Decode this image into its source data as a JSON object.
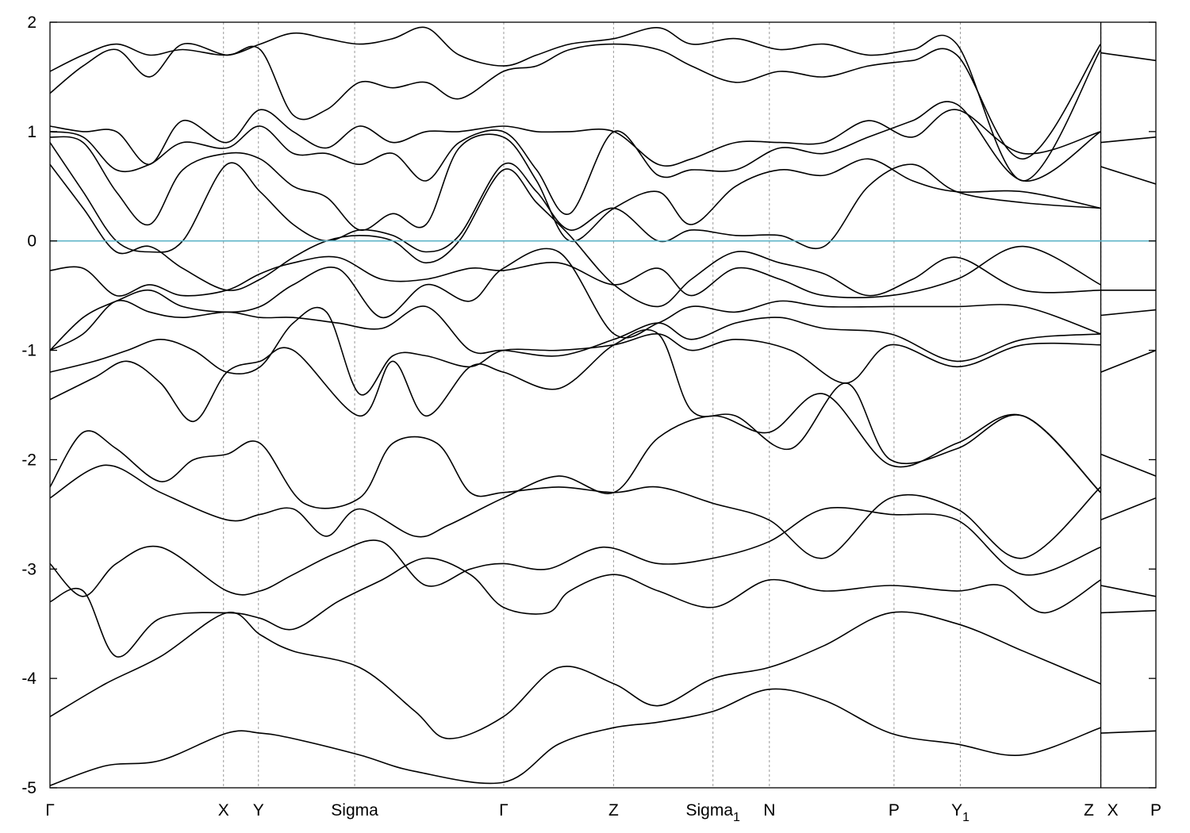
{
  "chart_data": {
    "type": "line",
    "title": "",
    "xlabel": "",
    "ylabel": "",
    "ylim": [
      -5,
      2
    ],
    "xlim": [
      0,
      1
    ],
    "yticks": [
      -5,
      -4,
      -3,
      -2,
      -1,
      0,
      1,
      2
    ],
    "ytick_labels": [
      "-5",
      "-4",
      "-3",
      "-2",
      "-1",
      "0",
      "1",
      "2"
    ],
    "kpoints": [
      {
        "label": "Γ",
        "sub": "",
        "x": 0.0
      },
      {
        "label": "X",
        "sub": "",
        "x": 0.1569
      },
      {
        "label": "Y",
        "sub": "",
        "x": 0.1885
      },
      {
        "label": "Sigma",
        "sub": "",
        "x": 0.2755
      },
      {
        "label": "Γ",
        "sub": "",
        "x": 0.4103
      },
      {
        "label": "Z",
        "sub": "",
        "x": 0.5096
      },
      {
        "label": "Sigma",
        "sub": "1",
        "x": 0.5995
      },
      {
        "label": "N",
        "sub": "",
        "x": 0.6505
      },
      {
        "label": "P",
        "sub": "",
        "x": 0.7632
      },
      {
        "label": "Y",
        "sub": "1",
        "x": 0.8232
      },
      {
        "label": "Z",
        "sub": "",
        "x": 0.9502
      },
      {
        "label": "X",
        "sub": "",
        "x": 0.9502
      },
      {
        "label": "P",
        "sub": "",
        "x": 1.0
      }
    ],
    "fermi_level": 0,
    "grid": "vertical dashed lines at high-symmetry points",
    "series": [
      {
        "x": [
          0,
          0.05,
          0.1,
          0.16,
          0.19,
          0.22,
          0.28,
          0.33,
          0.41,
          0.46,
          0.51,
          0.55,
          0.6,
          0.65,
          0.7,
          0.76,
          0.82,
          0.88,
          0.95
        ],
        "y": [
          -4.98,
          -4.8,
          -4.75,
          -4.5,
          -4.5,
          -4.55,
          -4.7,
          -4.85,
          -4.95,
          -4.6,
          -4.45,
          -4.4,
          -4.3,
          -4.1,
          -4.2,
          -4.5,
          -4.6,
          -4.7,
          -4.45
        ]
      },
      {
        "x": [
          0,
          0.05,
          0.1,
          0.16,
          0.19,
          0.22,
          0.28,
          0.33,
          0.36,
          0.41,
          0.46,
          0.51,
          0.55,
          0.6,
          0.65,
          0.7,
          0.76,
          0.82,
          0.88,
          0.95
        ],
        "y": [
          -4.35,
          -4.05,
          -3.8,
          -3.4,
          -3.6,
          -3.75,
          -3.9,
          -4.3,
          -4.55,
          -4.35,
          -3.9,
          -4.05,
          -4.25,
          -4.0,
          -3.9,
          -3.7,
          -3.4,
          -3.5,
          -3.75,
          -4.05
        ]
      },
      {
        "x": [
          0,
          0.03,
          0.06,
          0.1,
          0.16,
          0.19,
          0.22,
          0.26,
          0.3,
          0.34,
          0.38,
          0.41,
          0.45,
          0.47,
          0.51,
          0.55,
          0.6,
          0.65,
          0.7,
          0.76,
          0.82,
          0.86,
          0.9,
          0.95
        ],
        "y": [
          -3.3,
          -3.2,
          -3.8,
          -3.45,
          -3.4,
          -3.45,
          -3.55,
          -3.3,
          -3.1,
          -2.9,
          -3.05,
          -3.35,
          -3.4,
          -3.2,
          -3.05,
          -3.2,
          -3.35,
          -3.1,
          -3.2,
          -3.15,
          -3.2,
          -3.15,
          -3.4,
          -3.1
        ]
      },
      {
        "x": [
          0,
          0.03,
          0.06,
          0.1,
          0.16,
          0.19,
          0.22,
          0.26,
          0.3,
          0.34,
          0.38,
          0.41,
          0.45,
          0.5,
          0.55,
          0.6,
          0.65,
          0.7,
          0.76,
          0.82,
          0.88,
          0.95
        ],
        "y": [
          -2.95,
          -3.25,
          -2.95,
          -2.8,
          -3.2,
          -3.2,
          -3.05,
          -2.85,
          -2.75,
          -3.15,
          -3.0,
          -2.95,
          -3.0,
          -2.8,
          -2.95,
          -2.9,
          -2.75,
          -2.45,
          -2.5,
          -2.55,
          -3.05,
          -2.8
        ]
      },
      {
        "x": [
          0,
          0.05,
          0.1,
          0.16,
          0.19,
          0.22,
          0.25,
          0.28,
          0.33,
          0.36,
          0.41,
          0.46,
          0.51,
          0.55,
          0.6,
          0.65,
          0.7,
          0.76,
          0.82,
          0.88,
          0.95
        ],
        "y": [
          -2.35,
          -2.05,
          -2.3,
          -2.55,
          -2.5,
          -2.45,
          -2.7,
          -2.45,
          -2.7,
          -2.6,
          -2.35,
          -2.15,
          -2.3,
          -1.8,
          -1.6,
          -1.75,
          -1.4,
          -2.05,
          -1.85,
          -1.6,
          -2.3
        ]
      },
      {
        "x": [
          0,
          0.03,
          0.06,
          0.1,
          0.13,
          0.16,
          0.19,
          0.23,
          0.28,
          0.31,
          0.35,
          0.38,
          0.41,
          0.46,
          0.51,
          0.55,
          0.6,
          0.65,
          0.7,
          0.76,
          0.82,
          0.88,
          0.95
        ],
        "y": [
          -2.25,
          -1.75,
          -1.9,
          -2.2,
          -2.0,
          -1.95,
          -1.85,
          -2.4,
          -2.35,
          -1.85,
          -1.85,
          -2.3,
          -2.3,
          -2.25,
          -2.3,
          -2.25,
          -2.4,
          -2.55,
          -2.9,
          -2.35,
          -2.45,
          -2.9,
          -2.25
        ]
      },
      {
        "x": [
          0,
          0.04,
          0.07,
          0.1,
          0.13,
          0.16,
          0.19,
          0.22,
          0.28,
          0.31,
          0.34,
          0.38,
          0.41,
          0.46,
          0.51,
          0.55,
          0.58,
          0.62,
          0.67,
          0.72,
          0.76,
          0.82,
          0.88,
          0.95
        ],
        "y": [
          -1.45,
          -1.25,
          -1.1,
          -1.3,
          -1.65,
          -1.2,
          -1.1,
          -1.0,
          -1.6,
          -1.1,
          -1.6,
          -1.15,
          -1.2,
          -1.35,
          -0.95,
          -0.85,
          -1.55,
          -1.6,
          -1.9,
          -1.3,
          -2.0,
          -1.9,
          -1.6,
          -2.3
        ]
      },
      {
        "x": [
          0,
          0.04,
          0.07,
          0.1,
          0.13,
          0.16,
          0.19,
          0.22,
          0.25,
          0.28,
          0.31,
          0.34,
          0.38,
          0.41,
          0.46,
          0.51,
          0.55,
          0.58,
          0.62,
          0.67,
          0.72,
          0.76,
          0.82,
          0.88,
          0.95
        ],
        "y": [
          -1.2,
          -1.1,
          -1.0,
          -0.9,
          -1.0,
          -1.2,
          -1.15,
          -0.75,
          -0.65,
          -1.4,
          -1.05,
          -1.05,
          -1.15,
          -1.0,
          -1.0,
          -0.95,
          -0.85,
          -1.0,
          -0.9,
          -1.0,
          -1.3,
          -0.95,
          -1.15,
          -0.95,
          -0.95
        ]
      },
      {
        "x": [
          0,
          0.03,
          0.06,
          0.09,
          0.12,
          0.16,
          0.19,
          0.22,
          0.26,
          0.3,
          0.34,
          0.38,
          0.41,
          0.46,
          0.51,
          0.55,
          0.58,
          0.62,
          0.66,
          0.7,
          0.76,
          0.82,
          0.88,
          0.95
        ],
        "y": [
          -1.0,
          -0.85,
          -0.55,
          -0.65,
          -0.7,
          -0.65,
          -0.7,
          -0.7,
          -0.75,
          -0.8,
          -0.6,
          -1.0,
          -1.0,
          -1.05,
          -0.9,
          -0.75,
          -0.9,
          -0.75,
          -0.7,
          -0.8,
          -0.85,
          -1.1,
          -0.9,
          -0.85
        ]
      },
      {
        "x": [
          0,
          0.03,
          0.06,
          0.09,
          0.12,
          0.16,
          0.19,
          0.22,
          0.26,
          0.3,
          0.34,
          0.38,
          0.41,
          0.46,
          0.51,
          0.55,
          0.58,
          0.62,
          0.66,
          0.7,
          0.76,
          0.82,
          0.88,
          0.95
        ],
        "y": [
          -1.0,
          -0.7,
          -0.55,
          -0.45,
          -0.6,
          -0.65,
          -0.6,
          -0.4,
          -0.25,
          -0.7,
          -0.4,
          -0.55,
          -0.25,
          -0.1,
          -0.85,
          -0.75,
          -0.6,
          -0.65,
          -0.55,
          -0.6,
          -0.6,
          -0.6,
          -0.6,
          -0.85
        ]
      },
      {
        "x": [
          0,
          0.03,
          0.06,
          0.09,
          0.12,
          0.16,
          0.19,
          0.22,
          0.26,
          0.3,
          0.34,
          0.38,
          0.41,
          0.46,
          0.51,
          0.55,
          0.58,
          0.62,
          0.66,
          0.7,
          0.76,
          0.82,
          0.88,
          0.95
        ],
        "y": [
          -0.27,
          -0.25,
          -0.5,
          -0.4,
          -0.5,
          -0.45,
          -0.3,
          -0.2,
          -0.15,
          -0.35,
          -0.35,
          -0.25,
          -0.27,
          -0.2,
          -0.4,
          -0.25,
          -0.5,
          -0.25,
          -0.35,
          -0.5,
          -0.5,
          -0.35,
          -0.05,
          -0.4
        ]
      },
      {
        "x": [
          0,
          0.03,
          0.06,
          0.09,
          0.12,
          0.16,
          0.19,
          0.22,
          0.25,
          0.28,
          0.31,
          0.34,
          0.37,
          0.41,
          0.44,
          0.47,
          0.51,
          0.55,
          0.58,
          0.62,
          0.66,
          0.7,
          0.74,
          0.78,
          0.82,
          0.88,
          0.95
        ],
        "y": [
          0.7,
          0.3,
          -0.1,
          -0.05,
          -0.25,
          -0.45,
          -0.35,
          -0.15,
          0.0,
          0.05,
          0.0,
          -0.2,
          0.0,
          0.65,
          0.35,
          0.05,
          -0.4,
          -0.6,
          -0.35,
          -0.1,
          -0.2,
          -0.3,
          -0.5,
          -0.35,
          -0.15,
          -0.45,
          -0.45
        ]
      },
      {
        "x": [
          0,
          0.03,
          0.06,
          0.09,
          0.12,
          0.16,
          0.19,
          0.22,
          0.25,
          0.28,
          0.31,
          0.34,
          0.37,
          0.41,
          0.44,
          0.47,
          0.51,
          0.55,
          0.58,
          0.62,
          0.66,
          0.7,
          0.74,
          0.78,
          0.82,
          0.88,
          0.95
        ],
        "y": [
          0.9,
          0.45,
          0.0,
          -0.1,
          0.0,
          0.7,
          0.45,
          0.15,
          0.0,
          0.1,
          0.05,
          -0.1,
          0.05,
          0.7,
          0.45,
          0.1,
          0.3,
          0.0,
          0.1,
          0.05,
          0.05,
          -0.05,
          0.5,
          0.7,
          0.45,
          0.35,
          0.3
        ]
      },
      {
        "x": [
          0,
          0.03,
          0.06,
          0.09,
          0.12,
          0.16,
          0.19,
          0.22,
          0.25,
          0.28,
          0.31,
          0.34,
          0.37,
          0.41,
          0.44,
          0.47,
          0.51,
          0.55,
          0.58,
          0.62,
          0.66,
          0.7,
          0.74,
          0.78,
          0.82,
          0.88,
          0.95
        ],
        "y": [
          0.95,
          0.9,
          0.45,
          0.15,
          0.65,
          0.8,
          0.75,
          0.5,
          0.4,
          0.1,
          0.25,
          0.15,
          0.85,
          0.95,
          0.55,
          0.0,
          0.3,
          0.45,
          0.15,
          0.5,
          0.65,
          0.6,
          0.75,
          0.55,
          0.45,
          0.45,
          0.3
        ]
      },
      {
        "x": [
          0,
          0.03,
          0.06,
          0.09,
          0.12,
          0.16,
          0.19,
          0.22,
          0.25,
          0.28,
          0.31,
          0.34,
          0.37,
          0.41,
          0.44,
          0.47,
          0.51,
          0.55,
          0.58,
          0.62,
          0.66,
          0.7,
          0.74,
          0.78,
          0.82,
          0.88,
          0.95
        ],
        "y": [
          1.0,
          0.95,
          0.65,
          0.7,
          0.9,
          0.85,
          1.05,
          0.8,
          0.8,
          0.7,
          0.8,
          0.55,
          0.9,
          1.0,
          0.65,
          0.25,
          1.0,
          0.6,
          0.65,
          0.65,
          0.85,
          0.8,
          0.95,
          1.1,
          1.25,
          0.55,
          1.0
        ]
      },
      {
        "x": [
          0,
          0.03,
          0.06,
          0.09,
          0.12,
          0.16,
          0.19,
          0.22,
          0.25,
          0.28,
          0.31,
          0.34,
          0.37,
          0.41,
          0.44,
          0.47,
          0.51,
          0.55,
          0.58,
          0.62,
          0.66,
          0.7,
          0.74,
          0.78,
          0.82,
          0.88,
          0.95
        ],
        "y": [
          1.05,
          1.0,
          1.0,
          0.7,
          1.1,
          0.9,
          1.2,
          1.0,
          0.85,
          1.05,
          0.9,
          1.0,
          1.0,
          1.05,
          1.0,
          1.0,
          1.0,
          0.7,
          0.75,
          0.9,
          0.9,
          0.9,
          1.1,
          0.95,
          1.2,
          0.8,
          1.0
        ]
      },
      {
        "x": [
          0,
          0.03,
          0.06,
          0.09,
          0.12,
          0.16,
          0.19,
          0.22,
          0.25,
          0.28,
          0.31,
          0.34,
          0.37,
          0.41,
          0.44,
          0.47,
          0.51,
          0.55,
          0.58,
          0.62,
          0.66,
          0.7,
          0.74,
          0.78,
          0.82,
          0.88,
          0.95
        ],
        "y": [
          1.35,
          1.6,
          1.75,
          1.5,
          1.8,
          1.7,
          1.75,
          1.15,
          1.2,
          1.45,
          1.4,
          1.45,
          1.3,
          1.55,
          1.6,
          1.75,
          1.8,
          1.75,
          1.6,
          1.45,
          1.55,
          1.5,
          1.6,
          1.65,
          1.7,
          0.75,
          1.8
        ]
      },
      {
        "x": [
          0,
          0.03,
          0.06,
          0.09,
          0.12,
          0.16,
          0.19,
          0.22,
          0.25,
          0.28,
          0.31,
          0.34,
          0.37,
          0.41,
          0.44,
          0.47,
          0.51,
          0.55,
          0.58,
          0.62,
          0.66,
          0.7,
          0.74,
          0.78,
          0.82,
          0.88,
          0.95
        ],
        "y": [
          1.55,
          1.7,
          1.8,
          1.7,
          1.75,
          1.7,
          1.8,
          1.9,
          1.85,
          1.8,
          1.85,
          1.95,
          1.7,
          1.6,
          1.7,
          1.8,
          1.85,
          1.95,
          1.8,
          1.85,
          1.75,
          1.8,
          1.7,
          1.75,
          1.8,
          0.55,
          1.75
        ]
      },
      {
        "x": [
          0.9502,
          1.0
        ],
        "y": [
          1.72,
          1.65
        ]
      },
      {
        "x": [
          0.9502,
          1.0
        ],
        "y": [
          0.9,
          0.95
        ]
      },
      {
        "x": [
          0.9502,
          1.0
        ],
        "y": [
          0.68,
          0.52
        ]
      },
      {
        "x": [
          0.9502,
          1.0
        ],
        "y": [
          -0.45,
          -0.45
        ]
      },
      {
        "x": [
          0.9502,
          1.0
        ],
        "y": [
          -0.68,
          -0.63
        ]
      },
      {
        "x": [
          0.9502,
          1.0
        ],
        "y": [
          -1.2,
          -1.0
        ]
      },
      {
        "x": [
          0.9502,
          1.0
        ],
        "y": [
          -1.95,
          -2.15
        ]
      },
      {
        "x": [
          0.9502,
          1.0
        ],
        "y": [
          -2.55,
          -2.35
        ]
      },
      {
        "x": [
          0.9502,
          1.0
        ],
        "y": [
          -3.15,
          -3.25
        ]
      },
      {
        "x": [
          0.9502,
          1.0
        ],
        "y": [
          -3.4,
          -3.38
        ]
      },
      {
        "x": [
          0.9502,
          1.0
        ],
        "y": [
          -4.5,
          -4.48
        ]
      }
    ]
  }
}
